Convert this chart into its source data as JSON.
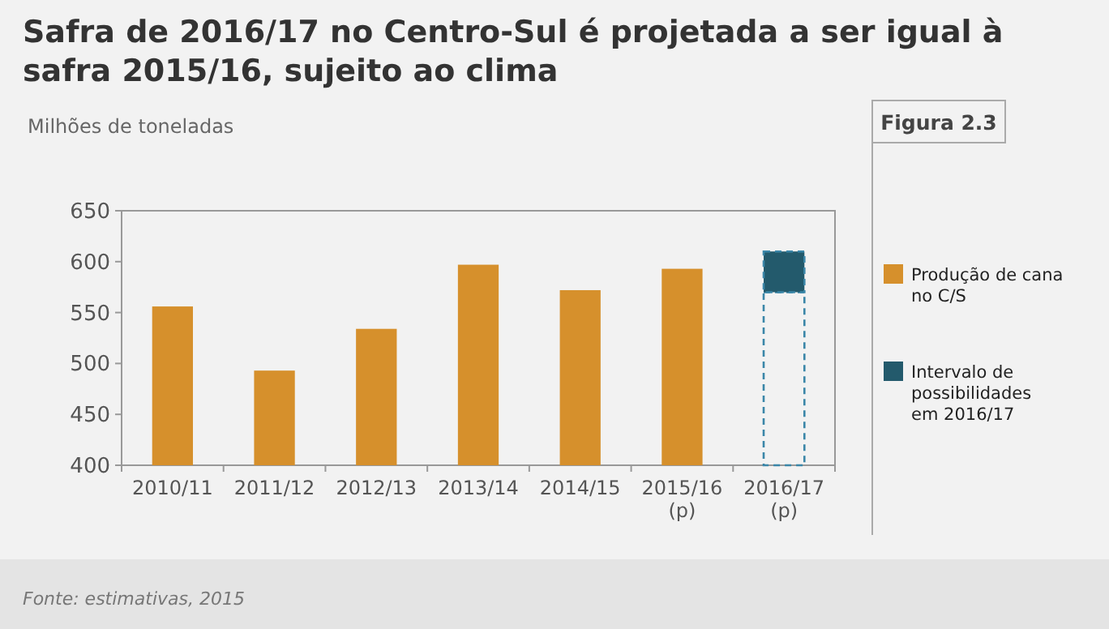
{
  "chart_data": {
    "type": "bar",
    "title": "Safra de 2016/17 no Centro-Sul é projetada a ser igual à safra 2015/16, sujeito ao clima",
    "ylabel": "Milhões de toneladas",
    "categories": [
      "2010/11",
      "2011/12",
      "2012/13",
      "2013/14",
      "2014/15",
      "2015/16 (p)",
      "2016/17 (p)"
    ],
    "series": [
      {
        "name": "Produção de cana no C/S",
        "color": "#d6902c",
        "values": [
          556,
          493,
          534,
          597,
          572,
          593,
          null
        ]
      },
      {
        "color": "#3a86a8",
        "line_style": "dashed",
        "values": [
          null,
          null,
          null,
          null,
          null,
          null,
          570
        ]
      },
      {
        "name": "Intervalo de possibilidades em 2016/17",
        "color": "#235a6c",
        "line_style": "dashed",
        "values": [
          null,
          null,
          null,
          null,
          null,
          null,
          40
        ],
        "base": [
          null,
          null,
          null,
          null,
          null,
          null,
          570
        ]
      }
    ],
    "ylim": [
      400,
      650
    ],
    "yticks": [
      400,
      450,
      500,
      550,
      600,
      650
    ],
    "legend": "right",
    "annotations": [
      "Figura 2.3",
      "Fonte: estimativas, 2015"
    ]
  }
}
